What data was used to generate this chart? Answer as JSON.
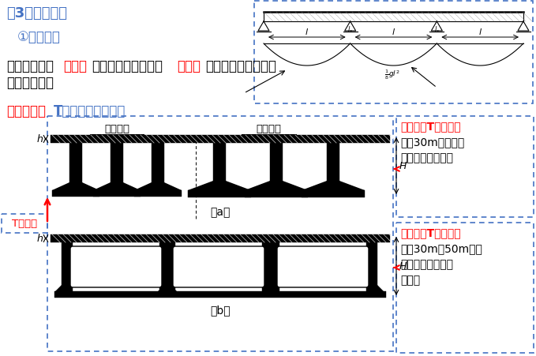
{
  "bg_color": "#ffffff",
  "title_3": "（3）构造特点",
  "title_3_color": "#4472C4",
  "subtitle_1": "①截面形式",
  "subtitle_1_color": "#4472C4",
  "para1_part1": "锚跨跨中承受",
  "para1_red1": "正弯矩",
  "para1_part2": "、支点附近承受较大",
  "para1_red2": "负弯矩",
  "para1_part3": "，故支点截面底部受",
  "para2": "压区需加强。",
  "sec_red": "截面形式：",
  "sec_blue": "T形截面、箱形截面",
  "right_box1_title": "带马蹄形T形截面：",
  "right_box1_title_color": "#FF0000",
  "right_box1_text1": "适用30m以内跨径",
  "right_box1_text2": "的钢筋混凝土桥梁",
  "right_box2_title": "底部加宽T形截面：",
  "right_box2_title_color": "#FF0000",
  "right_box2_text1": "适用30m～50m以内",
  "right_box2_text2": "跨径的预应力混凝",
  "right_box2_text3": "土桥梁",
  "T_label": "T形截面",
  "T_label_color": "#FF0000",
  "label_a": "（a）",
  "label_b": "（b）",
  "span_mid": "跨中截面",
  "span_support": "支点截面",
  "dotted_color": "#4472C4",
  "black": "#000000",
  "red": "#FF0000",
  "blue": "#4472C4"
}
